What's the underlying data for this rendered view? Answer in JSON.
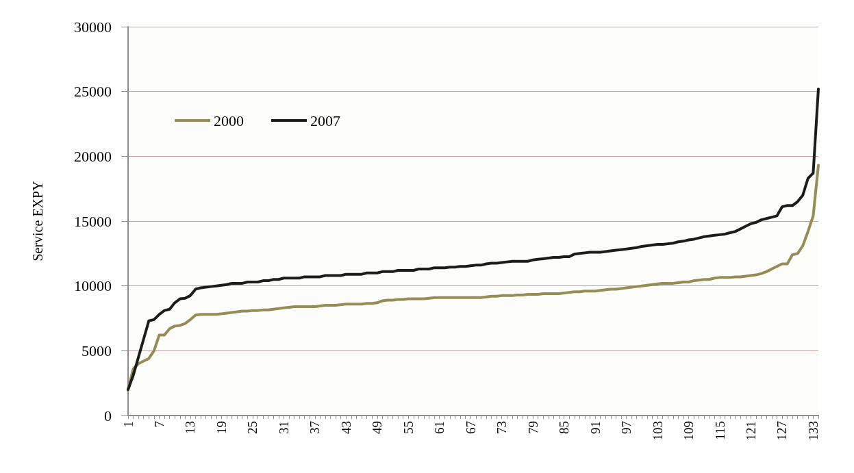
{
  "chart_data": {
    "type": "line",
    "ylabel": "Service EXPY",
    "categories": [
      "1",
      null,
      null,
      null,
      null,
      null,
      "7",
      null,
      null,
      null,
      null,
      null,
      "13",
      null,
      null,
      null,
      null,
      null,
      "19",
      null,
      null,
      null,
      null,
      null,
      "25",
      null,
      null,
      null,
      null,
      null,
      "31",
      null,
      null,
      null,
      null,
      null,
      "37",
      null,
      null,
      null,
      null,
      null,
      "43",
      null,
      null,
      null,
      null,
      null,
      "49",
      null,
      null,
      null,
      null,
      null,
      "55",
      null,
      null,
      null,
      null,
      null,
      "61",
      null,
      null,
      null,
      null,
      null,
      "67",
      null,
      null,
      null,
      null,
      null,
      "73",
      null,
      null,
      null,
      null,
      null,
      "79",
      null,
      null,
      null,
      null,
      null,
      "85",
      null,
      null,
      null,
      null,
      null,
      "91",
      null,
      null,
      null,
      null,
      null,
      "97",
      null,
      null,
      null,
      null,
      null,
      "103",
      null,
      null,
      null,
      null,
      null,
      "109",
      null,
      null,
      null,
      null,
      null,
      "115",
      null,
      null,
      null,
      null,
      null,
      "121",
      null,
      null,
      null,
      null,
      null,
      "127",
      null,
      null,
      null,
      null,
      null,
      "133",
      null
    ],
    "series": [
      {
        "name": "2000",
        "color": "#968c58",
        "values": [
          2000,
          3600,
          4000,
          4200,
          4400,
          5000,
          6200,
          6200,
          6700,
          6900,
          6950,
          7100,
          7400,
          7750,
          7800,
          7800,
          7800,
          7800,
          7850,
          7900,
          7950,
          8000,
          8050,
          8050,
          8100,
          8100,
          8150,
          8150,
          8200,
          8250,
          8300,
          8350,
          8400,
          8400,
          8400,
          8400,
          8400,
          8450,
          8500,
          8500,
          8500,
          8550,
          8600,
          8600,
          8600,
          8600,
          8650,
          8650,
          8700,
          8850,
          8900,
          8900,
          8950,
          8950,
          9000,
          9000,
          9000,
          9000,
          9050,
          9100,
          9100,
          9100,
          9100,
          9100,
          9100,
          9100,
          9100,
          9100,
          9100,
          9150,
          9200,
          9200,
          9250,
          9250,
          9250,
          9300,
          9300,
          9350,
          9350,
          9350,
          9400,
          9400,
          9400,
          9400,
          9450,
          9500,
          9550,
          9550,
          9600,
          9600,
          9600,
          9650,
          9700,
          9750,
          9750,
          9800,
          9850,
          9900,
          9950,
          10000,
          10050,
          10100,
          10150,
          10200,
          10200,
          10200,
          10250,
          10300,
          10300,
          10400,
          10450,
          10500,
          10500,
          10600,
          10650,
          10650,
          10650,
          10700,
          10700,
          10750,
          10800,
          10850,
          10950,
          11100,
          11300,
          11500,
          11700,
          11700,
          12400,
          12500,
          13100,
          14200,
          15400,
          19300
        ]
      },
      {
        "name": "2007",
        "color": "#1c1c1c",
        "values": [
          2000,
          3100,
          4500,
          5900,
          7300,
          7400,
          7800,
          8100,
          8200,
          8700,
          9000,
          9050,
          9250,
          9750,
          9850,
          9900,
          9950,
          10000,
          10050,
          10100,
          10200,
          10200,
          10200,
          10300,
          10300,
          10300,
          10400,
          10400,
          10500,
          10500,
          10600,
          10600,
          10600,
          10600,
          10700,
          10700,
          10700,
          10700,
          10800,
          10800,
          10800,
          10800,
          10900,
          10900,
          10900,
          10900,
          11000,
          11000,
          11000,
          11100,
          11100,
          11100,
          11200,
          11200,
          11200,
          11200,
          11300,
          11300,
          11300,
          11400,
          11400,
          11400,
          11450,
          11450,
          11500,
          11500,
          11550,
          11600,
          11600,
          11700,
          11750,
          11750,
          11800,
          11850,
          11900,
          11900,
          11900,
          11900,
          12000,
          12050,
          12100,
          12150,
          12200,
          12200,
          12250,
          12250,
          12450,
          12500,
          12550,
          12600,
          12600,
          12600,
          12650,
          12700,
          12750,
          12800,
          12850,
          12900,
          12950,
          13050,
          13100,
          13150,
          13200,
          13200,
          13250,
          13300,
          13400,
          13450,
          13550,
          13600,
          13700,
          13800,
          13850,
          13900,
          13950,
          14000,
          14100,
          14200,
          14400,
          14600,
          14800,
          14900,
          15100,
          15200,
          15300,
          15400,
          16100,
          16200,
          16200,
          16500,
          17000,
          18300,
          18700,
          25200
        ]
      }
    ],
    "ylim": [
      0,
      30000
    ],
    "yticks": [
      0,
      5000,
      10000,
      15000,
      20000,
      25000,
      30000
    ],
    "grid": "y",
    "legend": "top left",
    "marker": "none",
    "line_style": "solid"
  }
}
